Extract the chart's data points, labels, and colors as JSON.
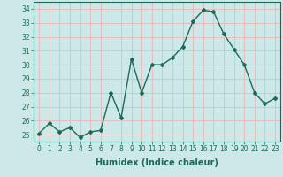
{
  "x": [
    0,
    1,
    2,
    3,
    4,
    5,
    6,
    7,
    8,
    9,
    10,
    11,
    12,
    13,
    14,
    15,
    16,
    17,
    18,
    19,
    20,
    21,
    22,
    23
  ],
  "y": [
    25.1,
    25.8,
    25.2,
    25.5,
    24.8,
    25.2,
    25.3,
    28.0,
    26.2,
    30.4,
    28.0,
    30.0,
    30.0,
    30.5,
    31.3,
    33.1,
    33.9,
    33.8,
    32.2,
    31.1,
    30.0,
    28.0,
    27.2,
    27.6
  ],
  "line_color": "#1a6b5a",
  "marker": "D",
  "marker_size": 2.0,
  "bg_color": "#cce8e8",
  "grid_color": "#e8b8b8",
  "xlabel": "Humidex (Indice chaleur)",
  "ylim": [
    24.5,
    34.5
  ],
  "yticks": [
    25,
    26,
    27,
    28,
    29,
    30,
    31,
    32,
    33,
    34
  ],
  "xticks": [
    0,
    1,
    2,
    3,
    4,
    5,
    6,
    7,
    8,
    9,
    10,
    11,
    12,
    13,
    14,
    15,
    16,
    17,
    18,
    19,
    20,
    21,
    22,
    23
  ],
  "tick_label_fontsize": 5.5,
  "xlabel_fontsize": 7.0,
  "line_width": 1.0
}
